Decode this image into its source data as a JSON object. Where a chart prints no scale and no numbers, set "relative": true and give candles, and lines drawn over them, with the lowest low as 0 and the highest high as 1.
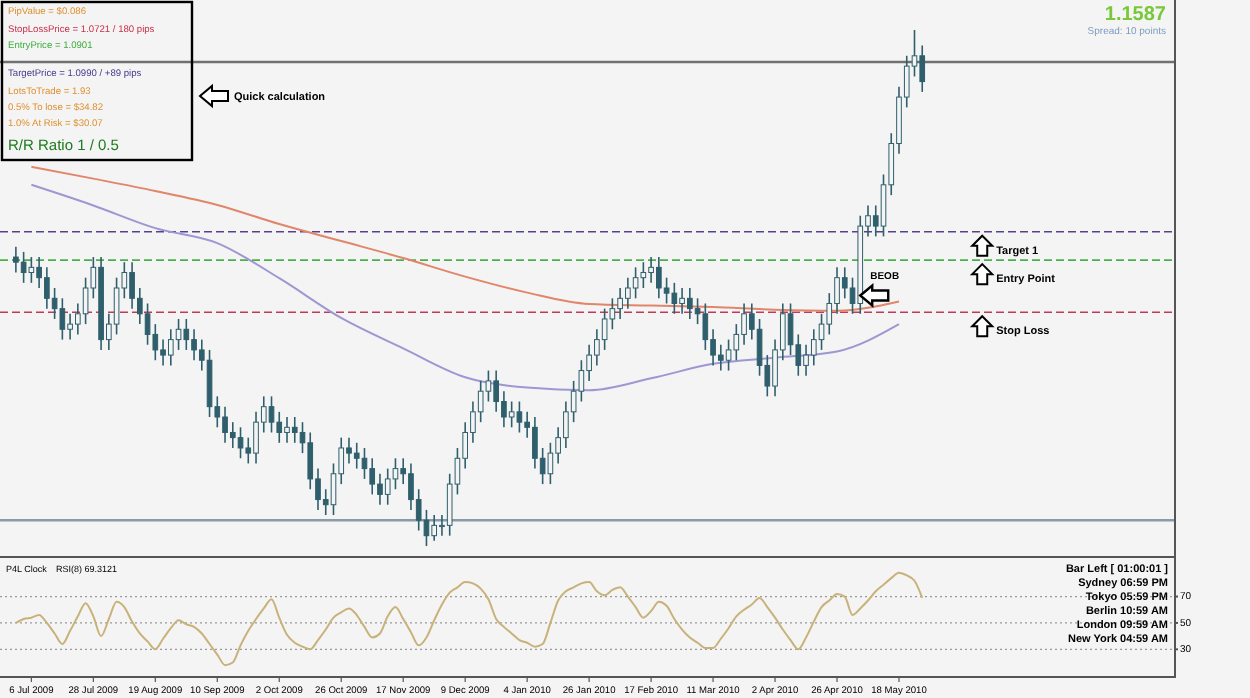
{
  "chart_data": [
    {
      "type": "candlestick",
      "relative": true,
      "color": "#2f5f6c",
      "tick_labels": false,
      "categories": [
        null,
        null,
        "6 Jul 2009",
        null,
        null,
        null,
        null,
        null,
        null,
        null,
        "28 Jul 2009",
        null,
        null,
        null,
        null,
        null,
        null,
        null,
        "19 Aug 2009",
        null,
        null,
        null,
        null,
        null,
        null,
        null,
        "10 Sep 2009",
        null,
        null,
        null,
        null,
        null,
        null,
        null,
        "2 Oct 2009",
        null,
        null,
        null,
        null,
        null,
        null,
        null,
        "26 Oct 2009",
        null,
        null,
        null,
        null,
        null,
        null,
        null,
        "17 Nov 2009",
        null,
        null,
        null,
        null,
        null,
        null,
        null,
        "9 Dec 2009",
        null,
        null,
        null,
        null,
        null,
        null,
        null,
        "4 Jan 2010",
        null,
        null,
        null,
        null,
        null,
        null,
        null,
        "26 Jan 2010",
        null,
        null,
        null,
        null,
        null,
        null,
        null,
        "17 Feb 2010",
        null,
        null,
        null,
        null,
        null,
        null,
        null,
        "11 Mar 2010",
        null,
        null,
        null,
        null,
        null,
        null,
        null,
        "2 Apr 2010",
        null,
        null,
        null,
        null,
        null,
        null,
        null,
        "26 Apr 2010",
        null,
        null,
        null,
        null,
        null,
        null,
        null,
        "18 May 2010",
        null,
        null,
        null,
        null,
        null,
        null,
        null,
        null,
        null,
        null,
        null,
        null,
        null,
        null,
        null,
        null,
        null,
        null,
        null,
        null,
        null,
        null,
        null,
        null,
        null,
        null,
        null,
        null,
        null,
        null,
        null,
        null,
        null,
        null,
        null
      ],
      "ohlc": [
        [
          0.56,
          0.58,
          0.53,
          0.55
        ],
        [
          0.55,
          0.57,
          0.51,
          0.53
        ],
        [
          0.53,
          0.56,
          0.51,
          0.54
        ],
        [
          0.54,
          0.56,
          0.5,
          0.52
        ],
        [
          0.52,
          0.54,
          0.46,
          0.48
        ],
        [
          0.48,
          0.5,
          0.44,
          0.46
        ],
        [
          0.46,
          0.48,
          0.4,
          0.42
        ],
        [
          0.42,
          0.45,
          0.4,
          0.43
        ],
        [
          0.43,
          0.47,
          0.41,
          0.45
        ],
        [
          0.45,
          0.52,
          0.43,
          0.5
        ],
        [
          0.5,
          0.56,
          0.48,
          0.54
        ],
        [
          0.54,
          0.56,
          0.38,
          0.4
        ],
        [
          0.4,
          0.45,
          0.38,
          0.43
        ],
        [
          0.43,
          0.52,
          0.41,
          0.5
        ],
        [
          0.5,
          0.55,
          0.48,
          0.53
        ],
        [
          0.53,
          0.55,
          0.46,
          0.48
        ],
        [
          0.48,
          0.5,
          0.43,
          0.45
        ],
        [
          0.45,
          0.47,
          0.39,
          0.41
        ],
        [
          0.41,
          0.43,
          0.36,
          0.38
        ],
        [
          0.38,
          0.4,
          0.35,
          0.37
        ],
        [
          0.37,
          0.42,
          0.35,
          0.4
        ],
        [
          0.4,
          0.44,
          0.38,
          0.42
        ],
        [
          0.42,
          0.44,
          0.38,
          0.4
        ],
        [
          0.4,
          0.42,
          0.36,
          0.38
        ],
        [
          0.38,
          0.4,
          0.34,
          0.36
        ],
        [
          0.36,
          0.38,
          0.25,
          0.27
        ],
        [
          0.27,
          0.29,
          0.23,
          0.25
        ],
        [
          0.25,
          0.27,
          0.2,
          0.22
        ],
        [
          0.22,
          0.24,
          0.19,
          0.21
        ],
        [
          0.21,
          0.23,
          0.17,
          0.19
        ],
        [
          0.19,
          0.21,
          0.16,
          0.18
        ],
        [
          0.18,
          0.26,
          0.16,
          0.24
        ],
        [
          0.24,
          0.29,
          0.22,
          0.27
        ],
        [
          0.27,
          0.29,
          0.22,
          0.24
        ],
        [
          0.24,
          0.26,
          0.2,
          0.22
        ],
        [
          0.22,
          0.25,
          0.2,
          0.23
        ],
        [
          0.23,
          0.25,
          0.2,
          0.22
        ],
        [
          0.22,
          0.24,
          0.18,
          0.2
        ],
        [
          0.2,
          0.22,
          0.11,
          0.13
        ],
        [
          0.13,
          0.15,
          0.07,
          0.09
        ],
        [
          0.09,
          0.11,
          0.06,
          0.08
        ],
        [
          0.08,
          0.16,
          0.06,
          0.14
        ],
        [
          0.14,
          0.21,
          0.12,
          0.19
        ],
        [
          0.19,
          0.21,
          0.16,
          0.18
        ],
        [
          0.18,
          0.2,
          0.15,
          0.17
        ],
        [
          0.17,
          0.19,
          0.13,
          0.15
        ],
        [
          0.15,
          0.17,
          0.1,
          0.12
        ],
        [
          0.12,
          0.14,
          0.08,
          0.1
        ],
        [
          0.1,
          0.15,
          0.08,
          0.13
        ],
        [
          0.13,
          0.17,
          0.11,
          0.15
        ],
        [
          0.15,
          0.17,
          0.12,
          0.14
        ],
        [
          0.14,
          0.16,
          0.07,
          0.09
        ],
        [
          0.09,
          0.11,
          0.03,
          0.05
        ],
        [
          0.05,
          0.07,
          0.0,
          0.02
        ],
        [
          0.02,
          0.06,
          0.01,
          0.04
        ],
        [
          0.04,
          0.06,
          0.02,
          0.04
        ],
        [
          0.04,
          0.14,
          0.02,
          0.12
        ],
        [
          0.12,
          0.19,
          0.1,
          0.17
        ],
        [
          0.17,
          0.24,
          0.15,
          0.22
        ],
        [
          0.22,
          0.28,
          0.2,
          0.26
        ],
        [
          0.26,
          0.32,
          0.24,
          0.3
        ],
        [
          0.3,
          0.34,
          0.28,
          0.32
        ],
        [
          0.32,
          0.34,
          0.26,
          0.28
        ],
        [
          0.28,
          0.3,
          0.23,
          0.25
        ],
        [
          0.25,
          0.28,
          0.23,
          0.26
        ],
        [
          0.26,
          0.28,
          0.22,
          0.24
        ],
        [
          0.24,
          0.26,
          0.21,
          0.23
        ],
        [
          0.23,
          0.25,
          0.15,
          0.17
        ],
        [
          0.17,
          0.19,
          0.12,
          0.14
        ],
        [
          0.14,
          0.2,
          0.12,
          0.18
        ],
        [
          0.18,
          0.23,
          0.16,
          0.21
        ],
        [
          0.21,
          0.28,
          0.19,
          0.26
        ],
        [
          0.26,
          0.32,
          0.24,
          0.3
        ],
        [
          0.3,
          0.36,
          0.28,
          0.34
        ],
        [
          0.34,
          0.39,
          0.32,
          0.37
        ],
        [
          0.37,
          0.42,
          0.35,
          0.4
        ],
        [
          0.4,
          0.46,
          0.38,
          0.44
        ],
        [
          0.44,
          0.48,
          0.42,
          0.46
        ],
        [
          0.46,
          0.5,
          0.44,
          0.48
        ],
        [
          0.48,
          0.52,
          0.46,
          0.5
        ],
        [
          0.5,
          0.54,
          0.48,
          0.52
        ],
        [
          0.52,
          0.55,
          0.5,
          0.53
        ],
        [
          0.53,
          0.56,
          0.51,
          0.54
        ],
        [
          0.54,
          0.56,
          0.48,
          0.5
        ],
        [
          0.5,
          0.52,
          0.47,
          0.49
        ],
        [
          0.49,
          0.51,
          0.45,
          0.47
        ],
        [
          0.47,
          0.5,
          0.45,
          0.48
        ],
        [
          0.48,
          0.5,
          0.44,
          0.46
        ],
        [
          0.46,
          0.48,
          0.43,
          0.45
        ],
        [
          0.45,
          0.47,
          0.38,
          0.4
        ],
        [
          0.4,
          0.42,
          0.35,
          0.37
        ],
        [
          0.37,
          0.39,
          0.34,
          0.36
        ],
        [
          0.36,
          0.4,
          0.34,
          0.38
        ],
        [
          0.38,
          0.43,
          0.36,
          0.41
        ],
        [
          0.41,
          0.47,
          0.39,
          0.45
        ],
        [
          0.45,
          0.47,
          0.4,
          0.42
        ],
        [
          0.42,
          0.44,
          0.33,
          0.35
        ],
        [
          0.35,
          0.37,
          0.29,
          0.31
        ],
        [
          0.31,
          0.4,
          0.29,
          0.38
        ],
        [
          0.38,
          0.47,
          0.36,
          0.45
        ],
        [
          0.45,
          0.47,
          0.37,
          0.39
        ],
        [
          0.39,
          0.41,
          0.33,
          0.35
        ],
        [
          0.35,
          0.39,
          0.33,
          0.37
        ],
        [
          0.37,
          0.42,
          0.35,
          0.4
        ],
        [
          0.4,
          0.45,
          0.38,
          0.43
        ],
        [
          0.43,
          0.49,
          0.41,
          0.47
        ],
        [
          0.47,
          0.54,
          0.45,
          0.52
        ],
        [
          0.52,
          0.54,
          0.48,
          0.5
        ],
        [
          0.5,
          0.52,
          0.45,
          0.47
        ],
        [
          0.47,
          0.64,
          0.45,
          0.62
        ],
        [
          0.62,
          0.66,
          0.6,
          0.64
        ],
        [
          0.64,
          0.66,
          0.6,
          0.62
        ],
        [
          0.62,
          0.72,
          0.6,
          0.7
        ],
        [
          0.7,
          0.8,
          0.68,
          0.78
        ],
        [
          0.78,
          0.89,
          0.76,
          0.87
        ],
        [
          0.87,
          0.95,
          0.85,
          0.93
        ],
        [
          0.93,
          1.0,
          0.91,
          0.95
        ],
        [
          0.95,
          0.97,
          0.88,
          0.9
        ],
        null,
        null,
        null,
        null,
        null,
        null,
        null,
        null,
        null,
        null,
        null,
        null,
        null,
        null,
        null,
        null,
        null,
        null,
        null,
        null,
        null,
        null,
        null,
        null,
        null,
        null,
        null,
        null,
        null,
        null,
        null,
        null
      ],
      "series": [
        {
          "type": "line",
          "color": "#e0866a",
          "x": [
            "6 Jul 2009",
            "28 Jul 2009",
            "19 Aug 2009",
            "10 Sep 2009",
            "2 Oct 2009",
            "26 Oct 2009",
            "17 Nov 2009",
            "9 Dec 2009",
            "4 Jan 2010",
            "26 Jan 2010",
            "17 Feb 2010",
            "11 Mar 2010",
            "2 Apr 2010",
            "26 Apr 2010",
            "18 May 2010"
          ],
          "values": [
            0.735,
            0.712,
            0.688,
            0.661,
            0.624,
            0.591,
            0.558,
            0.522,
            0.491,
            0.469,
            0.466,
            0.463,
            0.458,
            0.456,
            0.474
          ]
        },
        {
          "type": "line",
          "color": "#9d97d2",
          "x": [
            "6 Jul 2009",
            "28 Jul 2009",
            "19 Aug 2009",
            "10 Sep 2009",
            "2 Oct 2009",
            "26 Oct 2009",
            "17 Nov 2009",
            "9 Dec 2009",
            "4 Jan 2010",
            "26 Jan 2010",
            "17 Feb 2010",
            "11 Mar 2010",
            "2 Apr 2010",
            "26 Apr 2010",
            "18 May 2010"
          ],
          "values": [
            0.7,
            0.66,
            0.616,
            0.587,
            0.519,
            0.442,
            0.383,
            0.327,
            0.307,
            0.302,
            0.325,
            0.353,
            0.365,
            0.377,
            0.43
          ]
        }
      ],
      "ref_lines": [
        {
          "axis": "y",
          "value": 0.938,
          "label": null,
          "color": "#707070",
          "line_style": "solid"
        },
        {
          "axis": "y",
          "value": 0.609,
          "label": "Target 1",
          "color": "#5a3f8e",
          "line_style": "dashed"
        },
        {
          "axis": "y",
          "value": 0.554,
          "label": "Entry Point",
          "color": "#4cae4c",
          "line_style": "dashed"
        },
        {
          "axis": "y",
          "value": 0.453,
          "label": "Stop Loss",
          "color": "#c23a5a",
          "line_style": "dashed"
        },
        {
          "axis": "y",
          "value": 0.05,
          "label": null,
          "color": "#8a9aa8",
          "line_style": "solid"
        }
      ],
      "annotations": [
        "PipValue = $0.086",
        "StopLossPrice = 1.0721 / 180 pips",
        "EntryPrice = 1.0901",
        "TargetPrice = 1.0990 / +89 pips",
        "LotsToTrade = 1.93",
        "0.5% To lose = $34.82",
        "1.0% At Risk = $30.07",
        "R/R Ratio  1 / 0.5",
        "Quick calculation",
        "1.1587",
        "Spread: 10 points",
        {
          "text": "BEOB",
          "y": 0.47
        }
      ]
    },
    {
      "type": "line",
      "color": "#c9b27a",
      "ylim": [
        9,
        100
      ],
      "yticks": [
        30,
        50,
        70
      ],
      "grid": "y",
      "categories": [
        null,
        null,
        "6 Jul 2009",
        null,
        null,
        null,
        null,
        null,
        null,
        null,
        "28 Jul 2009",
        null,
        null,
        null,
        null,
        null,
        null,
        null,
        "19 Aug 2009",
        null,
        null,
        null,
        null,
        null,
        null,
        null,
        "10 Sep 2009",
        null,
        null,
        null,
        null,
        null,
        null,
        null,
        "2 Oct 2009",
        null,
        null,
        null,
        null,
        null,
        null,
        null,
        "26 Oct 2009",
        null,
        null,
        null,
        null,
        null,
        null,
        null,
        "17 Nov 2009",
        null,
        null,
        null,
        null,
        null,
        null,
        null,
        "9 Dec 2009",
        null,
        null,
        null,
        null,
        null,
        null,
        null,
        "4 Jan 2010",
        null,
        null,
        null,
        null,
        null,
        null,
        null,
        "26 Jan 2010",
        null,
        null,
        null,
        null,
        null,
        null,
        null,
        "17 Feb 2010",
        null,
        null,
        null,
        null,
        null,
        null,
        null,
        "11 Mar 2010",
        null,
        null,
        null,
        null,
        null,
        null,
        null,
        "2 Apr 2010",
        null,
        null,
        null,
        null,
        null,
        null,
        null,
        "26 Apr 2010",
        null,
        null,
        null,
        null,
        null,
        null,
        null,
        "18 May 2010",
        null,
        null,
        null,
        null,
        null,
        null,
        null,
        null,
        null,
        null,
        null,
        null,
        null,
        null,
        null,
        null,
        null,
        null,
        null,
        null,
        null,
        null,
        null,
        null,
        null,
        null,
        null,
        null,
        null,
        null,
        null,
        null,
        null,
        null,
        null
      ],
      "values": [
        50,
        53,
        54,
        56,
        50,
        42,
        34,
        44,
        55,
        65,
        55,
        40,
        53,
        66,
        62,
        51,
        42,
        36,
        30,
        38,
        46,
        52,
        49,
        47,
        42,
        34,
        26,
        18,
        20,
        33,
        44,
        53,
        61,
        68,
        54,
        41,
        35,
        32,
        30,
        37,
        45,
        54,
        58,
        61,
        56,
        47,
        39,
        42,
        55,
        62,
        53,
        43,
        33,
        39,
        52,
        64,
        73,
        77,
        81,
        80,
        76,
        68,
        53,
        47,
        42,
        37,
        35,
        32,
        34,
        50,
        67,
        74,
        77,
        80,
        81,
        74,
        71,
        75,
        77,
        70,
        62,
        54,
        59,
        66,
        63,
        53,
        45,
        39,
        35,
        31,
        31,
        38,
        46,
        55,
        60,
        64,
        69,
        62,
        54,
        45,
        37,
        30,
        39,
        51,
        62,
        67,
        72,
        70,
        56,
        61,
        67,
        74,
        79,
        84,
        88,
        86,
        82,
        69,
        null,
        null,
        null,
        null,
        null,
        null,
        null,
        null,
        null,
        null,
        null,
        null,
        null,
        null,
        null,
        null,
        null,
        null,
        null,
        null,
        null,
        null,
        null,
        null,
        null,
        null,
        null,
        null,
        null,
        null,
        null,
        null
      ],
      "annotations": [
        "P4L Clock",
        "RSI(8) 69.3121",
        "Bar Left [ 01:00:01 ]",
        "Sydney 06:59 PM",
        "Tokyo 05:59 PM",
        "Berlin 10:59 AM",
        "London 09:59 AM",
        "New York 04:59 AM"
      ]
    }
  ]
}
